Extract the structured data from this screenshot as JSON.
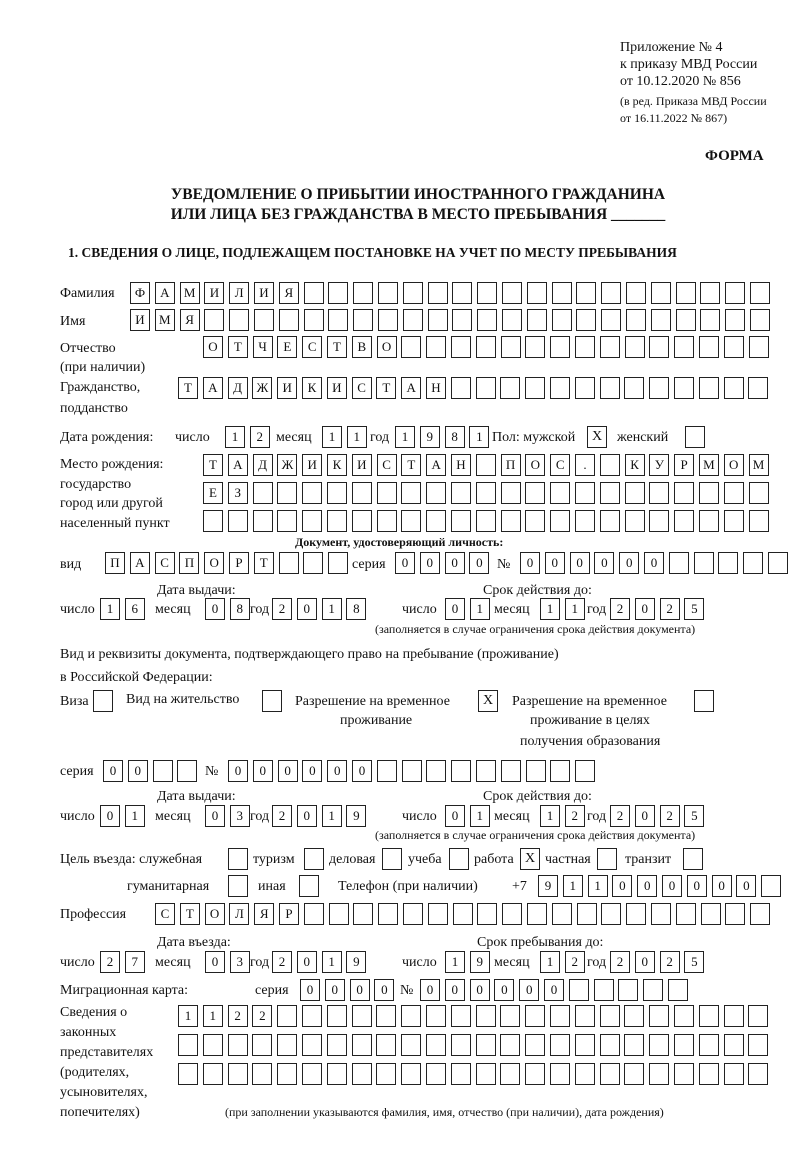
{
  "header": {
    "l1": "Приложение № 4",
    "l2": "к приказу МВД России",
    "l3": "от 10.12.2020 № 856",
    "l4": "(в ред. Приказа МВД России",
    "l5": "от 16.11.2022 № 867)",
    "forma": "ФОРМА"
  },
  "title": {
    "l1": "УВЕДОМЛЕНИЕ О ПРИБЫТИИ ИНОСТРАННОГО ГРАЖДАНИНА",
    "l2": "ИЛИ ЛИЦА БЕЗ ГРАЖДАНСТВА В МЕСТО ПРЕБЫВАНИЯ _______"
  },
  "section1": "1. СВЕДЕНИЯ О ЛИЦЕ, ПОДЛЕЖАЩЕМ ПОСТАНОВКЕ НА УЧЕТ ПО МЕСТУ ПРЕБЫВАНИЯ",
  "labels": {
    "surname": "Фамилия",
    "name": "Имя",
    "patronymic": "Отчество",
    "patronymic2": "(при наличии)",
    "citizenship": "Гражданство,",
    "citizenship2": "подданство",
    "dob": "Дата рождения:",
    "day": "число",
    "month": "месяц",
    "year": "год",
    "sex": "Пол: мужской",
    "female": "женский",
    "birthplace": "Место рождения:",
    "bp2": "государство",
    "bp3": "город или другой",
    "bp4": "населенный пункт",
    "iddoc": "Документ, удостоверяющий личность:",
    "kind": "вид",
    "series": "серия",
    "num": "№",
    "issue": "Дата выдачи:",
    "valid": "Срок действия до:",
    "valid_note": "(заполняется в случае ограничения срока действия документа)",
    "permit1": "Вид и реквизиты документа, подтверждающего право на пребывание (проживание)",
    "permit2": "в Российской Федерации:",
    "visa": "Виза",
    "residence": "Вид на жительство",
    "trp1": "Разрешение на временное",
    "trp2": "проживание",
    "trpe1": "Разрешение на временное",
    "trpe2": "проживание в целях",
    "trpe3": "получения образования",
    "purpose": "Цель въезда: служебная",
    "tourism": "туризм",
    "business": "деловая",
    "study": "учеба",
    "work": "работа",
    "private": "частная",
    "transit": "транзит",
    "humanitarian": "гуманитарная",
    "other": "иная",
    "phone": "Телефон (при наличии)",
    "phone_prefix": "+7",
    "profession": "Профессия",
    "entry": "Дата въезда:",
    "stay": "Срок пребывания до:",
    "migcard": "Миграционная карта:",
    "reps1": "Сведения о",
    "reps2": "законных",
    "reps3": "представителях",
    "reps4": "(родителях,",
    "reps5": "усыновителях,",
    "reps6": "попечителях)",
    "reps_note": "(при заполнении указываются фамилия, имя, отчество (при наличии), дата рождения)"
  },
  "person": {
    "surname": "ФАМИЛИЯ",
    "name": "ИМЯ",
    "patronymic": "ОТЧЕСТВО",
    "citizenship": "ТАДЖИКИСТАН",
    "dob_day": "12",
    "dob_month": "11",
    "dob_year": "1981",
    "male": "X",
    "female": "",
    "birthplace1": "ТАДЖИКИСТАН ПОС. КУРМОМБ",
    "birthplace2": "ЕЗ",
    "birthplace3": ""
  },
  "id_doc": {
    "kind": "ПАСПОРТ",
    "series": "0000",
    "number": "000000",
    "issue_day": "16",
    "issue_month": "08",
    "issue_year": "2018",
    "valid_day": "01",
    "valid_month": "11",
    "valid_year": "2025"
  },
  "permit": {
    "visa": "",
    "residence": "",
    "trp": "X",
    "trpe": "",
    "series": "00",
    "number": "000000",
    "issue_day": "01",
    "issue_month": "03",
    "issue_year": "2019",
    "valid_day": "01",
    "valid_month": "12",
    "valid_year": "2025"
  },
  "purpose": {
    "service": "",
    "tourism": "",
    "business": "",
    "study": "",
    "work": "X",
    "private": "",
    "transit": "",
    "humanitarian": "",
    "other": ""
  },
  "phone": "911000000",
  "profession": "СТОЛЯР",
  "entry": {
    "day": "27",
    "month": "03",
    "year": "2019",
    "stay_day": "19",
    "stay_month": "12",
    "stay_year": "2025"
  },
  "migcard": {
    "series": "0000",
    "number": "000000"
  },
  "reps": {
    "r1": "1122",
    "r2": "",
    "r3": ""
  }
}
